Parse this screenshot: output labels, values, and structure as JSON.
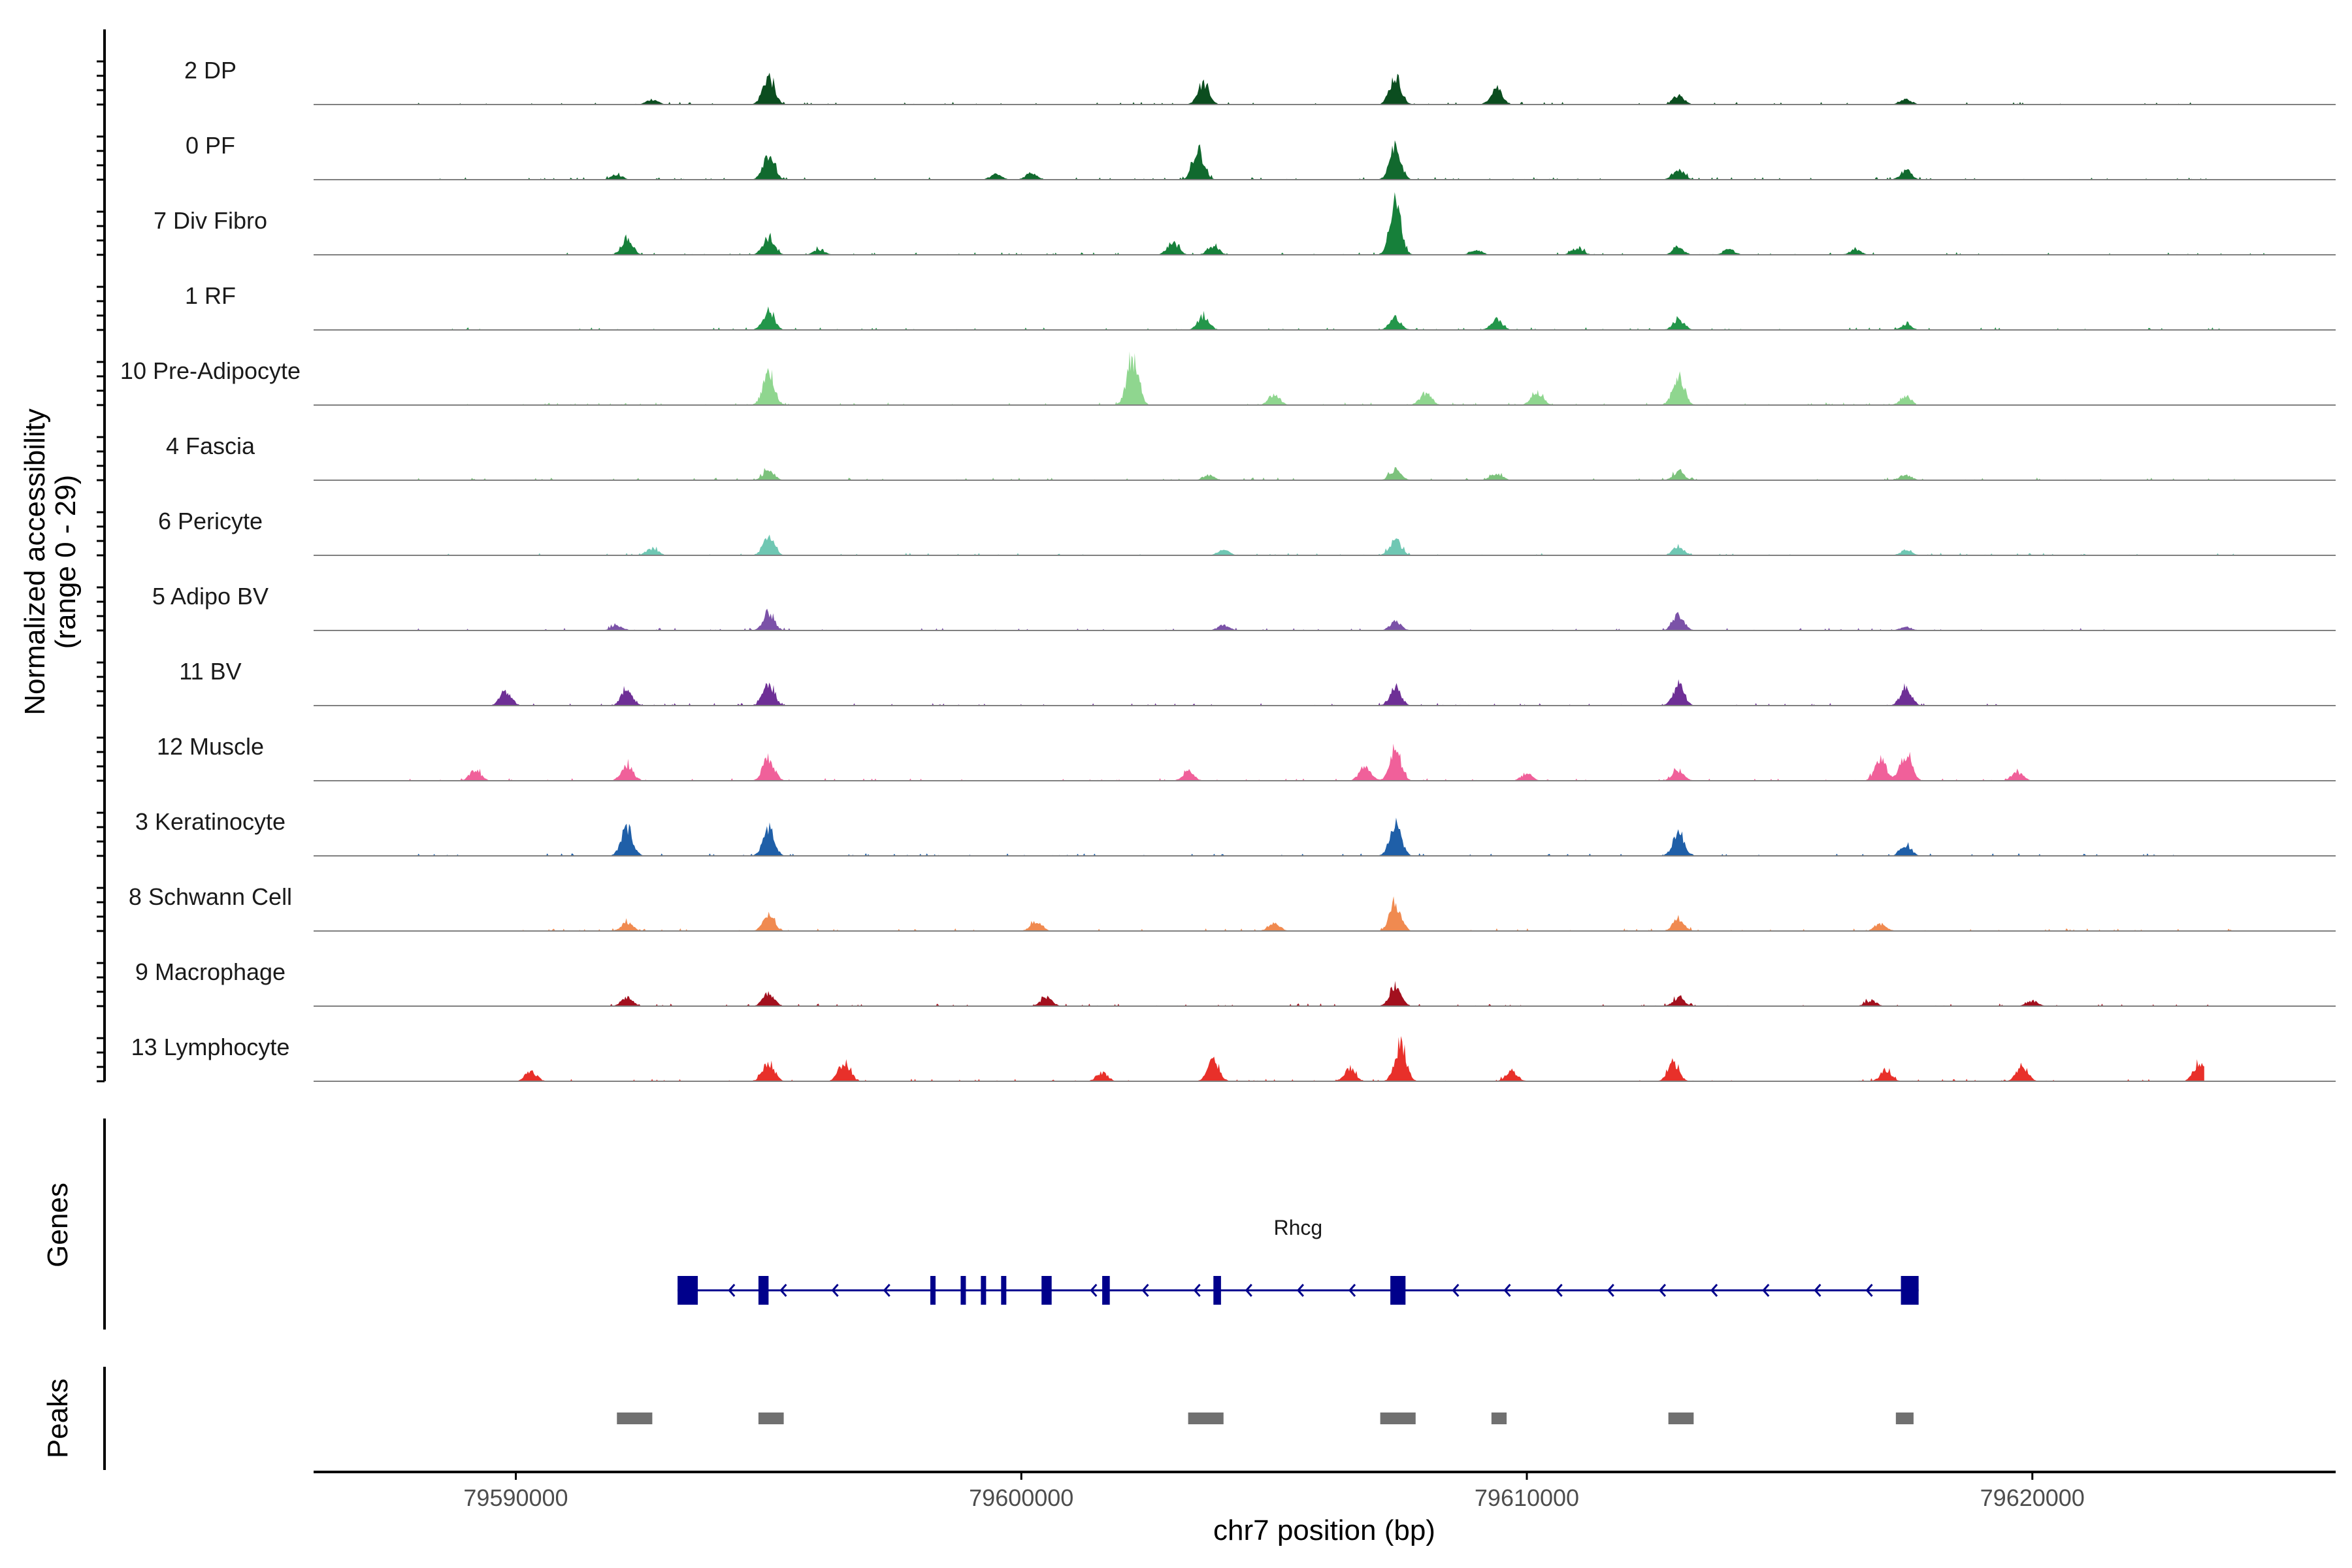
{
  "chart_data": {
    "type": "area",
    "title": "",
    "chromosome": "chr7",
    "xlabel": "chr7 position (bp)",
    "ylabel_lines": [
      "Normalized accessibility",
      "(range 0 - 29)"
    ],
    "y_range": [
      0,
      29
    ],
    "xlim": [
      79586000,
      79626000
    ],
    "xticks": [
      79590000,
      79600000,
      79610000,
      79620000
    ],
    "xtick_labels": [
      "79590000",
      "79600000",
      "79610000",
      "79620000"
    ],
    "tracks": [
      {
        "name": "2 DP",
        "color": "#0b4d1f",
        "start": 79588000,
        "end": 79624000,
        "peaks": [
          [
            79592700,
            3
          ],
          [
            79595000,
            16
          ],
          [
            79603600,
            12
          ],
          [
            79607400,
            16
          ],
          [
            79609400,
            10
          ],
          [
            79613000,
            5
          ],
          [
            79617500,
            3
          ]
        ]
      },
      {
        "name": "0 PF",
        "color": "#11692e",
        "start": 79588000,
        "end": 79624000,
        "peaks": [
          [
            79592000,
            3
          ],
          [
            79595000,
            15
          ],
          [
            79599500,
            3
          ],
          [
            79600200,
            4
          ],
          [
            79603500,
            17
          ],
          [
            79607400,
            17
          ],
          [
            79613000,
            6
          ],
          [
            79617500,
            5
          ]
        ]
      },
      {
        "name": "7 Div Fibro",
        "color": "#16803a",
        "start": 79590800,
        "end": 79624700,
        "peaks": [
          [
            79592200,
            9
          ],
          [
            79595000,
            10
          ],
          [
            79596000,
            3
          ],
          [
            79603000,
            7
          ],
          [
            79603800,
            5
          ],
          [
            79607400,
            29
          ],
          [
            79609000,
            3
          ],
          [
            79611000,
            4
          ],
          [
            79613000,
            4
          ],
          [
            79614000,
            3
          ],
          [
            79616500,
            3
          ]
        ]
      },
      {
        "name": "1 RF",
        "color": "#23964a",
        "start": 79588000,
        "end": 79624000,
        "peaks": [
          [
            79595000,
            11
          ],
          [
            79603600,
            8
          ],
          [
            79607400,
            7
          ],
          [
            79609400,
            6
          ],
          [
            79613000,
            6
          ],
          [
            79617500,
            3
          ]
        ]
      },
      {
        "name": "10 Pre-Adipocyte",
        "color": "#8fd68f",
        "start": 79589000,
        "end": 79617700,
        "peaks": [
          [
            79595000,
            18
          ],
          [
            79602200,
            27
          ],
          [
            79605000,
            6
          ],
          [
            79608000,
            7
          ],
          [
            79610200,
            8
          ],
          [
            79613000,
            16
          ],
          [
            79617500,
            5
          ]
        ]
      },
      {
        "name": "4 Fascia",
        "color": "#7cc27c",
        "start": 79588000,
        "end": 79624000,
        "peaks": [
          [
            79595000,
            6
          ],
          [
            79603700,
            3
          ],
          [
            79607400,
            6
          ],
          [
            79609400,
            4
          ],
          [
            79613000,
            5
          ],
          [
            79617500,
            3
          ]
        ]
      },
      {
        "name": "6 Pericyte",
        "color": "#6fc7b3",
        "start": 79588000,
        "end": 79624000,
        "peaks": [
          [
            79592700,
            4
          ],
          [
            79595000,
            10
          ],
          [
            79604000,
            3
          ],
          [
            79607400,
            9
          ],
          [
            79613000,
            5
          ],
          [
            79617500,
            3
          ]
        ]
      },
      {
        "name": "5 Adipo BV",
        "color": "#7b52a8",
        "start": 79588000,
        "end": 79622000,
        "peaks": [
          [
            79592000,
            3
          ],
          [
            79595000,
            10
          ],
          [
            79604000,
            3
          ],
          [
            79607400,
            5
          ],
          [
            79613000,
            9
          ],
          [
            79617500,
            2
          ]
        ]
      },
      {
        "name": "11 BV",
        "color": "#6e2f96",
        "start": 79589500,
        "end": 79619300,
        "peaks": [
          [
            79589800,
            8
          ],
          [
            79592200,
            9
          ],
          [
            79595000,
            12
          ],
          [
            79607400,
            10
          ],
          [
            79613000,
            12
          ],
          [
            79617500,
            10
          ]
        ]
      },
      {
        "name": "12 Muscle",
        "color": "#f0609a",
        "start": 79587700,
        "end": 79620000,
        "peaks": [
          [
            79589200,
            6
          ],
          [
            79592200,
            9
          ],
          [
            79595000,
            13
          ],
          [
            79603300,
            5
          ],
          [
            79606800,
            8
          ],
          [
            79607400,
            17
          ],
          [
            79610000,
            4
          ],
          [
            79613000,
            6
          ],
          [
            79617000,
            12
          ],
          [
            79617500,
            15
          ],
          [
            79619700,
            5
          ]
        ]
      },
      {
        "name": "3 Keratinocyte",
        "color": "#1f5fa8",
        "start": 79588000,
        "end": 79624000,
        "peaks": [
          [
            79592200,
            16
          ],
          [
            79595000,
            15
          ],
          [
            79607400,
            19
          ],
          [
            79613000,
            13
          ],
          [
            79617500,
            6
          ]
        ]
      },
      {
        "name": "8 Schwann Cell",
        "color": "#f08a50",
        "start": 79590000,
        "end": 79624000,
        "peaks": [
          [
            79592200,
            5
          ],
          [
            79595000,
            9
          ],
          [
            79600300,
            6
          ],
          [
            79605000,
            5
          ],
          [
            79607400,
            16
          ],
          [
            79613000,
            7
          ],
          [
            79617000,
            4
          ]
        ]
      },
      {
        "name": "9 Macrophage",
        "color": "#a3101e",
        "start": 79591800,
        "end": 79624000,
        "peaks": [
          [
            79592200,
            5
          ],
          [
            79595000,
            7
          ],
          [
            79600500,
            5
          ],
          [
            79607400,
            12
          ],
          [
            79613000,
            5
          ],
          [
            79616800,
            3
          ],
          [
            79620000,
            3
          ]
        ]
      },
      {
        "name": "13 Lymphocyte",
        "color": "#e8302a",
        "start": 79590000,
        "end": 79623400,
        "peaks": [
          [
            79590300,
            6
          ],
          [
            79595000,
            11
          ],
          [
            79596500,
            11
          ],
          [
            79601600,
            5
          ],
          [
            79603800,
            12
          ],
          [
            79606500,
            7
          ],
          [
            79607500,
            21
          ],
          [
            79609700,
            6
          ],
          [
            79612900,
            10
          ],
          [
            79617100,
            6
          ],
          [
            79619800,
            9
          ],
          [
            79623300,
            10
          ]
        ]
      }
    ],
    "genes": [
      {
        "name": "Rhcg",
        "strand": "-",
        "start": 79593200,
        "end": 79617750,
        "color": "#00008b",
        "exons": [
          [
            79593200,
            79593600
          ],
          [
            79594800,
            79595000
          ],
          [
            79598200,
            79598300
          ],
          [
            79598800,
            79598900
          ],
          [
            79599200,
            79599300
          ],
          [
            79599600,
            79599700
          ],
          [
            79600400,
            79600600
          ],
          [
            79601600,
            79601750
          ],
          [
            79603800,
            79603950
          ],
          [
            79607300,
            79607600
          ],
          [
            79617400,
            79617750
          ]
        ]
      }
    ],
    "peaks_track": {
      "color": "#707070",
      "regions": [
        [
          79592000,
          79592700
        ],
        [
          79594800,
          79595300
        ],
        [
          79603300,
          79604000
        ],
        [
          79607100,
          79607800
        ],
        [
          79609300,
          79609600
        ],
        [
          79612800,
          79613300
        ],
        [
          79617300,
          79617650
        ]
      ]
    },
    "panel_labels": {
      "genes": "Genes",
      "peaks": "Peaks"
    }
  }
}
